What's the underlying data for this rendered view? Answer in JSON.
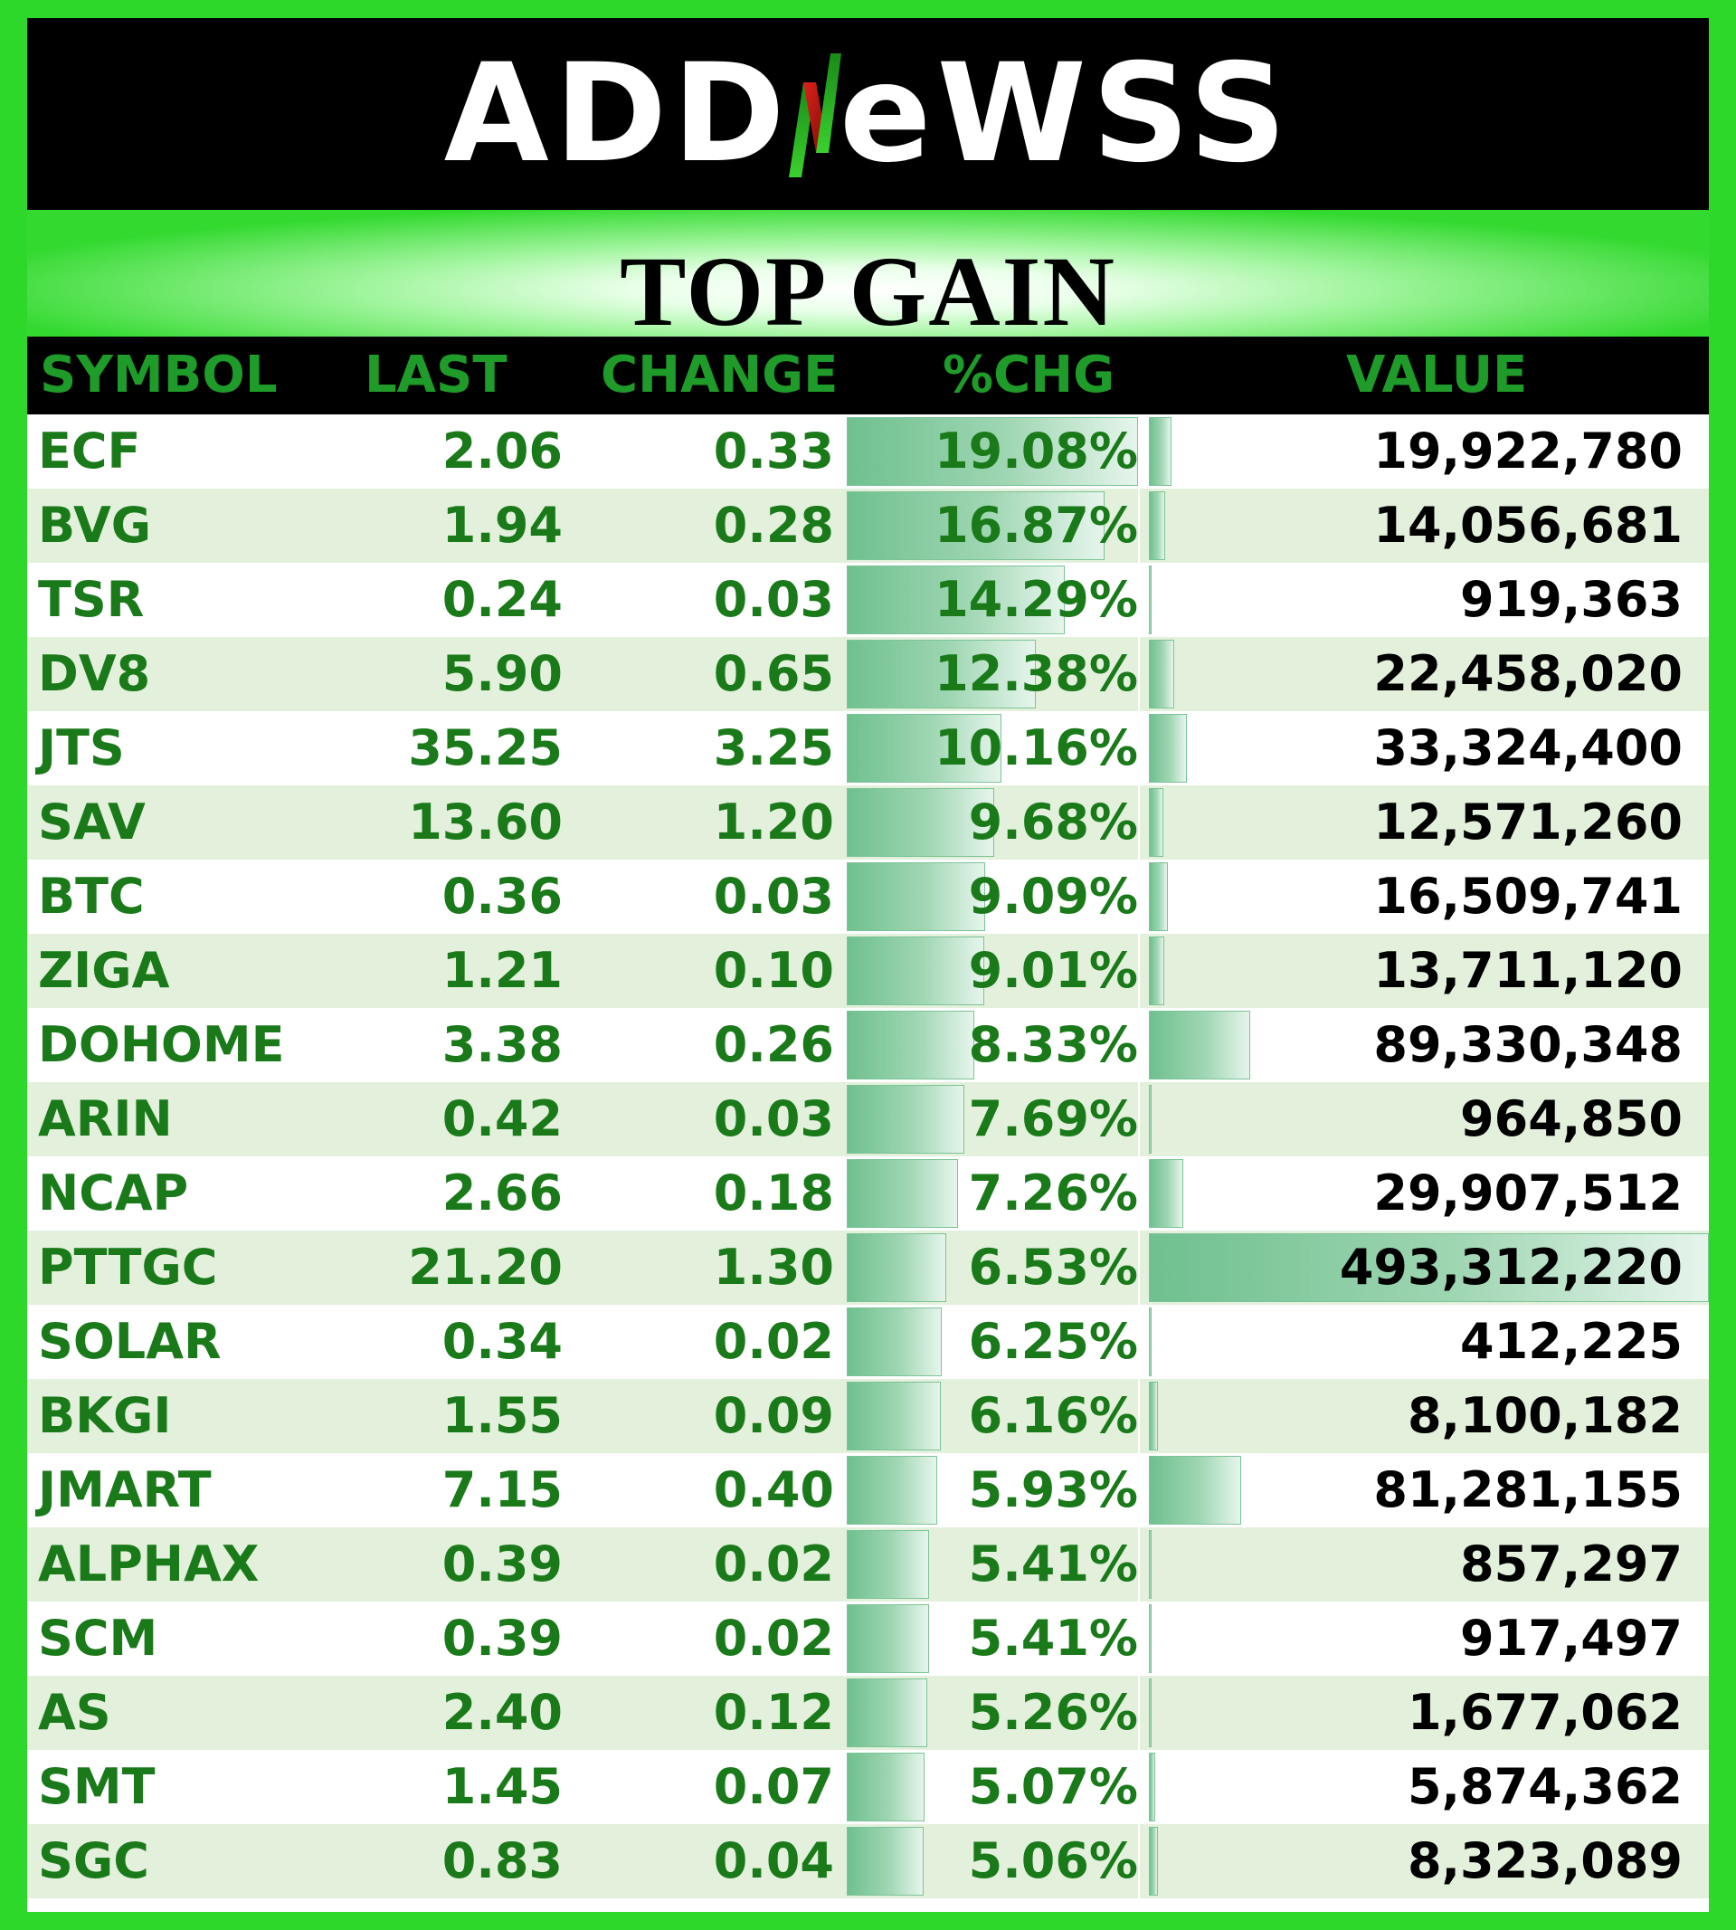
{
  "brand": {
    "logo_text_left": "ADD",
    "logo_text_right": "eWSS"
  },
  "title": "TOP GAIN",
  "columns": {
    "symbol": "SYMBOL",
    "last": "LAST",
    "change": "CHANGE",
    "pct": "%CHG",
    "value": "VALUE"
  },
  "colors": {
    "background": "#2ed82a",
    "header_bg": "#000000",
    "text_green": "#1a7a1a",
    "header_text": "#1e9b28",
    "bar": "#6fc08f"
  },
  "rows": [
    {
      "symbol": "ECF",
      "last": "2.06",
      "change": "0.33",
      "pct": "19.08%",
      "value": "19,922,780",
      "pct_num": 19.08,
      "value_num": 19922780
    },
    {
      "symbol": "BVG",
      "last": "1.94",
      "change": "0.28",
      "pct": "16.87%",
      "value": "14,056,681",
      "pct_num": 16.87,
      "value_num": 14056681
    },
    {
      "symbol": "TSR",
      "last": "0.24",
      "change": "0.03",
      "pct": "14.29%",
      "value": "919,363",
      "pct_num": 14.29,
      "value_num": 919363
    },
    {
      "symbol": "DV8",
      "last": "5.90",
      "change": "0.65",
      "pct": "12.38%",
      "value": "22,458,020",
      "pct_num": 12.38,
      "value_num": 22458020
    },
    {
      "symbol": "JTS",
      "last": "35.25",
      "change": "3.25",
      "pct": "10.16%",
      "value": "33,324,400",
      "pct_num": 10.16,
      "value_num": 33324400
    },
    {
      "symbol": "SAV",
      "last": "13.60",
      "change": "1.20",
      "pct": "9.68%",
      "value": "12,571,260",
      "pct_num": 9.68,
      "value_num": 12571260
    },
    {
      "symbol": "BTC",
      "last": "0.36",
      "change": "0.03",
      "pct": "9.09%",
      "value": "16,509,741",
      "pct_num": 9.09,
      "value_num": 16509741
    },
    {
      "symbol": "ZIGA",
      "last": "1.21",
      "change": "0.10",
      "pct": "9.01%",
      "value": "13,711,120",
      "pct_num": 9.01,
      "value_num": 13711120
    },
    {
      "symbol": "DOHOME",
      "last": "3.38",
      "change": "0.26",
      "pct": "8.33%",
      "value": "89,330,348",
      "pct_num": 8.33,
      "value_num": 89330348
    },
    {
      "symbol": "ARIN",
      "last": "0.42",
      "change": "0.03",
      "pct": "7.69%",
      "value": "964,850",
      "pct_num": 7.69,
      "value_num": 964850
    },
    {
      "symbol": "NCAP",
      "last": "2.66",
      "change": "0.18",
      "pct": "7.26%",
      "value": "29,907,512",
      "pct_num": 7.26,
      "value_num": 29907512
    },
    {
      "symbol": "PTTGC",
      "last": "21.20",
      "change": "1.30",
      "pct": "6.53%",
      "value": "493,312,220",
      "pct_num": 6.53,
      "value_num": 493312220
    },
    {
      "symbol": "SOLAR",
      "last": "0.34",
      "change": "0.02",
      "pct": "6.25%",
      "value": "412,225",
      "pct_num": 6.25,
      "value_num": 412225
    },
    {
      "symbol": "BKGI",
      "last": "1.55",
      "change": "0.09",
      "pct": "6.16%",
      "value": "8,100,182",
      "pct_num": 6.16,
      "value_num": 8100182
    },
    {
      "symbol": "JMART",
      "last": "7.15",
      "change": "0.40",
      "pct": "5.93%",
      "value": "81,281,155",
      "pct_num": 5.93,
      "value_num": 81281155
    },
    {
      "symbol": "ALPHAX",
      "last": "0.39",
      "change": "0.02",
      "pct": "5.41%",
      "value": "857,297",
      "pct_num": 5.41,
      "value_num": 857297
    },
    {
      "symbol": "SCM",
      "last": "0.39",
      "change": "0.02",
      "pct": "5.41%",
      "value": "917,497",
      "pct_num": 5.41,
      "value_num": 917497
    },
    {
      "symbol": "AS",
      "last": "2.40",
      "change": "0.12",
      "pct": "5.26%",
      "value": "1,677,062",
      "pct_num": 5.26,
      "value_num": 1677062
    },
    {
      "symbol": "SMT",
      "last": "1.45",
      "change": "0.07",
      "pct": "5.07%",
      "value": "5,874,362",
      "pct_num": 5.07,
      "value_num": 5874362
    },
    {
      "symbol": "SGC",
      "last": "0.83",
      "change": "0.04",
      "pct": "5.06%",
      "value": "8,323,089",
      "pct_num": 5.06,
      "value_num": 8323089
    }
  ]
}
